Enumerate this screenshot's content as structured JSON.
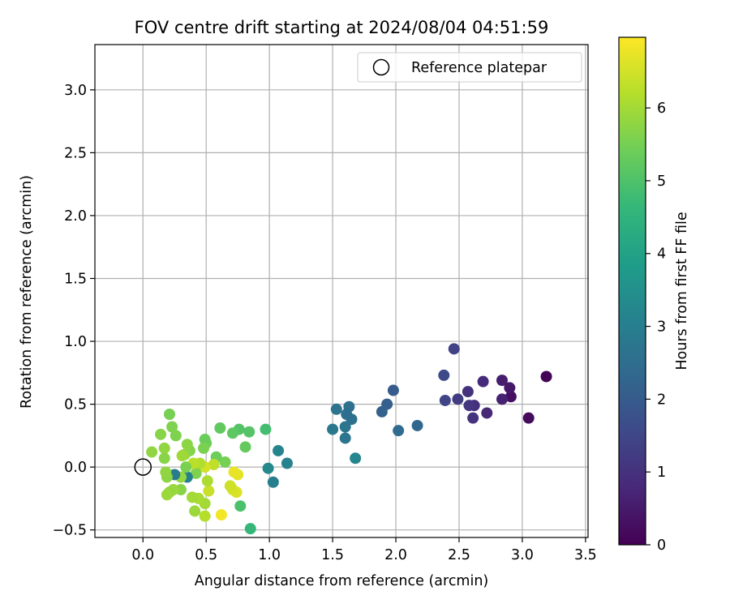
{
  "colors": {
    "grid": "#b0b0b0",
    "reference_marker": "#000000"
  },
  "colormap": {
    "name": "viridis",
    "stops": [
      "#440154",
      "#482878",
      "#3e4989",
      "#31688e",
      "#26828e",
      "#1f9e89",
      "#35b779",
      "#6ece58",
      "#b5de2b",
      "#fde725"
    ]
  },
  "chart_data": {
    "type": "scatter",
    "title": "FOV centre drift starting at 2024/08/04 04:51:59",
    "xlabel": "Angular distance from reference (arcmin)",
    "ylabel": "Rotation from reference (arcmin)",
    "colorbar_label": "Hours from first FF file",
    "xlim": [
      -0.38,
      3.52
    ],
    "ylim": [
      -0.56,
      3.36
    ],
    "clim": [
      0,
      6.97
    ],
    "xticks": [
      0.0,
      0.5,
      1.0,
      1.5,
      2.0,
      2.5,
      3.0,
      3.5
    ],
    "xticklabels": [
      "0.0",
      "0.5",
      "1.0",
      "1.5",
      "2.0",
      "2.5",
      "3.0",
      "3.5"
    ],
    "yticks": [
      -0.5,
      0.0,
      0.5,
      1.0,
      1.5,
      2.0,
      2.5,
      3.0
    ],
    "yticklabels": [
      "−0.5",
      "0.0",
      "0.5",
      "1.0",
      "1.5",
      "2.0",
      "2.5",
      "3.0"
    ],
    "cticks": [
      0,
      1,
      2,
      3,
      4,
      5,
      6
    ],
    "cticklabels": [
      "0",
      "1",
      "2",
      "3",
      "4",
      "5",
      "6"
    ],
    "grid": true,
    "legend": {
      "placement": "top-right",
      "entries": [
        {
          "label": "Reference platepar",
          "marker": "open-circle"
        }
      ]
    },
    "reference_point": {
      "x": 0.0,
      "y": 0.0
    },
    "points": [
      {
        "x": 3.19,
        "y": 0.72,
        "c": 0.05
      },
      {
        "x": 3.05,
        "y": 0.39,
        "c": 0.2
      },
      {
        "x": 2.91,
        "y": 0.56,
        "c": 0.3
      },
      {
        "x": 2.9,
        "y": 0.63,
        "c": 0.45
      },
      {
        "x": 2.84,
        "y": 0.69,
        "c": 0.55
      },
      {
        "x": 2.84,
        "y": 0.54,
        "c": 0.65
      },
      {
        "x": 2.72,
        "y": 0.43,
        "c": 0.75
      },
      {
        "x": 2.69,
        "y": 0.68,
        "c": 0.85
      },
      {
        "x": 2.62,
        "y": 0.49,
        "c": 0.95
      },
      {
        "x": 2.61,
        "y": 0.39,
        "c": 1.05
      },
      {
        "x": 2.58,
        "y": 0.49,
        "c": 1.1
      },
      {
        "x": 2.57,
        "y": 0.6,
        "c": 1.0
      },
      {
        "x": 2.49,
        "y": 0.54,
        "c": 1.25
      },
      {
        "x": 2.46,
        "y": 0.94,
        "c": 1.35
      },
      {
        "x": 2.39,
        "y": 0.53,
        "c": 1.45
      },
      {
        "x": 2.38,
        "y": 0.73,
        "c": 1.55
      },
      {
        "x": 2.17,
        "y": 0.33,
        "c": 2.3
      },
      {
        "x": 2.02,
        "y": 0.29,
        "c": 2.45
      },
      {
        "x": 1.98,
        "y": 0.61,
        "c": 2.0
      },
      {
        "x": 1.93,
        "y": 0.5,
        "c": 2.1
      },
      {
        "x": 1.89,
        "y": 0.44,
        "c": 2.2
      },
      {
        "x": 1.68,
        "y": 0.07,
        "c": 3.2
      },
      {
        "x": 1.65,
        "y": 0.38,
        "c": 2.6
      },
      {
        "x": 1.63,
        "y": 0.48,
        "c": 2.55
      },
      {
        "x": 1.61,
        "y": 0.42,
        "c": 2.5
      },
      {
        "x": 1.6,
        "y": 0.23,
        "c": 2.7
      },
      {
        "x": 1.6,
        "y": 0.32,
        "c": 2.75
      },
      {
        "x": 1.53,
        "y": 0.46,
        "c": 2.65
      },
      {
        "x": 1.5,
        "y": 0.3,
        "c": 2.8
      },
      {
        "x": 1.14,
        "y": 0.03,
        "c": 3.1
      },
      {
        "x": 1.07,
        "y": 0.13,
        "c": 3.15
      },
      {
        "x": 1.03,
        "y": -0.12,
        "c": 3.0
      },
      {
        "x": 0.99,
        "y": -0.01,
        "c": 3.25
      },
      {
        "x": 0.97,
        "y": 0.3,
        "c": 4.85
      },
      {
        "x": 0.85,
        "y": -0.49,
        "c": 4.65
      },
      {
        "x": 0.84,
        "y": 0.28,
        "c": 5.1
      },
      {
        "x": 0.81,
        "y": 0.16,
        "c": 5.3
      },
      {
        "x": 0.77,
        "y": -0.31,
        "c": 4.95
      },
      {
        "x": 0.76,
        "y": 0.3,
        "c": 5.05
      },
      {
        "x": 0.71,
        "y": 0.27,
        "c": 5.2
      },
      {
        "x": 0.61,
        "y": 0.31,
        "c": 5.25
      },
      {
        "x": 0.75,
        "y": -0.06,
        "c": 6.7
      },
      {
        "x": 0.72,
        "y": -0.04,
        "c": 6.75
      },
      {
        "x": 0.74,
        "y": -0.2,
        "c": 6.6
      },
      {
        "x": 0.71,
        "y": -0.18,
        "c": 6.55
      },
      {
        "x": 0.69,
        "y": -0.15,
        "c": 6.45
      },
      {
        "x": 0.65,
        "y": 0.04,
        "c": 5.5
      },
      {
        "x": 0.62,
        "y": -0.38,
        "c": 6.85
      },
      {
        "x": 0.58,
        "y": 0.08,
        "c": 5.4
      },
      {
        "x": 0.56,
        "y": 0.02,
        "c": 6.3
      },
      {
        "x": 0.52,
        "y": -0.19,
        "c": 6.4
      },
      {
        "x": 0.51,
        "y": -0.11,
        "c": 6.1
      },
      {
        "x": 0.5,
        "y": 0.19,
        "c": 5.45
      },
      {
        "x": 0.49,
        "y": 0.22,
        "c": 5.35
      },
      {
        "x": 0.49,
        "y": 0.0,
        "c": 6.5
      },
      {
        "x": 0.48,
        "y": 0.15,
        "c": 5.55
      },
      {
        "x": 0.49,
        "y": -0.29,
        "c": 6.0
      },
      {
        "x": 0.49,
        "y": -0.39,
        "c": 6.2
      },
      {
        "x": 0.45,
        "y": 0.03,
        "c": 6.15
      },
      {
        "x": 0.44,
        "y": -0.25,
        "c": 6.05
      },
      {
        "x": 0.42,
        "y": -0.05,
        "c": 5.6
      },
      {
        "x": 0.4,
        "y": 0.03,
        "c": 6.25
      },
      {
        "x": 0.41,
        "y": -0.35,
        "c": 5.9
      },
      {
        "x": 0.39,
        "y": -0.24,
        "c": 6.0
      },
      {
        "x": 0.37,
        "y": 0.13,
        "c": 5.65
      },
      {
        "x": 0.35,
        "y": 0.18,
        "c": 5.75
      },
      {
        "x": 0.35,
        "y": -0.08,
        "c": 3.05
      },
      {
        "x": 0.34,
        "y": 0.0,
        "c": 5.55
      },
      {
        "x": 0.33,
        "y": 0.1,
        "c": 5.8
      },
      {
        "x": 0.31,
        "y": 0.09,
        "c": 5.95
      },
      {
        "x": 0.3,
        "y": -0.18,
        "c": 5.7
      },
      {
        "x": 0.3,
        "y": -0.08,
        "c": 5.85
      },
      {
        "x": 0.26,
        "y": 0.25,
        "c": 5.6
      },
      {
        "x": 0.25,
        "y": -0.06,
        "c": 2.9
      },
      {
        "x": 0.24,
        "y": -0.18,
        "c": 5.9
      },
      {
        "x": 0.23,
        "y": 0.32,
        "c": 5.6
      },
      {
        "x": 0.21,
        "y": -0.2,
        "c": 5.85
      },
      {
        "x": 0.21,
        "y": 0.42,
        "c": 5.5
      },
      {
        "x": 0.19,
        "y": -0.22,
        "c": 5.9
      },
      {
        "x": 0.19,
        "y": -0.08,
        "c": 5.75
      },
      {
        "x": 0.18,
        "y": -0.04,
        "c": 5.8
      },
      {
        "x": 0.17,
        "y": 0.15,
        "c": 5.8
      },
      {
        "x": 0.17,
        "y": 0.07,
        "c": 5.7
      },
      {
        "x": 0.14,
        "y": 0.26,
        "c": 5.7
      },
      {
        "x": 0.07,
        "y": 0.12,
        "c": 5.8
      }
    ]
  }
}
